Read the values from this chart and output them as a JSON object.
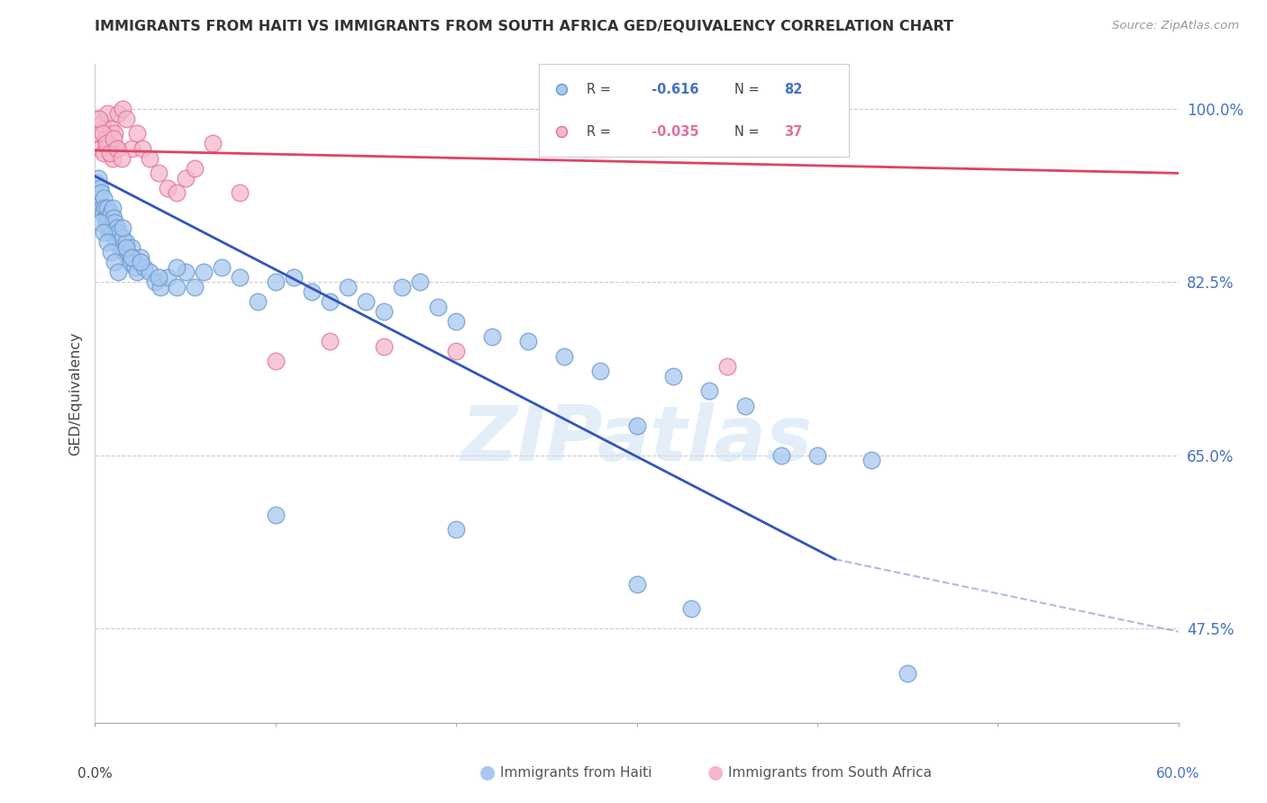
{
  "title": "IMMIGRANTS FROM HAITI VS IMMIGRANTS FROM SOUTH AFRICA GED/EQUIVALENCY CORRELATION CHART",
  "source": "Source: ZipAtlas.com",
  "ylabel": "GED/Equivalency",
  "right_yticks": [
    47.5,
    65.0,
    82.5,
    100.0
  ],
  "right_ytick_labels": [
    "47.5%",
    "65.0%",
    "82.5%",
    "100.0%"
  ],
  "haiti_color": "#a8c8f0",
  "haiti_edge_color": "#6699cc",
  "sa_color": "#f5b8c8",
  "sa_edge_color": "#e070a0",
  "haiti_line_color": "#3355bb",
  "sa_line_color": "#dd4466",
  "watermark": "ZIPatlas",
  "haiti_scatter_x": [
    0.1,
    0.15,
    0.2,
    0.25,
    0.3,
    0.35,
    0.4,
    0.45,
    0.5,
    0.55,
    0.6,
    0.65,
    0.7,
    0.75,
    0.8,
    0.85,
    0.9,
    0.95,
    1.0,
    1.05,
    1.1,
    1.15,
    1.2,
    1.25,
    1.3,
    1.4,
    1.5,
    1.6,
    1.7,
    1.8,
    1.9,
    2.0,
    2.1,
    2.2,
    2.3,
    2.5,
    2.7,
    3.0,
    3.3,
    3.6,
    4.0,
    4.5,
    5.0,
    5.5,
    6.0,
    7.0,
    8.0,
    9.0,
    10.0,
    11.0,
    12.0,
    13.0,
    14.0,
    15.0,
    16.0,
    17.0,
    18.0,
    19.0,
    20.0,
    22.0,
    24.0,
    26.0,
    28.0,
    30.0,
    32.0,
    34.0,
    36.0,
    38.0,
    40.0,
    43.0,
    0.3,
    0.5,
    0.7,
    0.9,
    1.1,
    1.3,
    1.5,
    1.7,
    2.0,
    2.5,
    3.5,
    4.5
  ],
  "haiti_scatter_y": [
    92.5,
    91.0,
    93.0,
    90.5,
    92.0,
    91.5,
    90.0,
    89.5,
    91.0,
    90.0,
    89.0,
    88.5,
    90.0,
    89.0,
    87.5,
    88.0,
    89.5,
    88.0,
    90.0,
    89.0,
    88.5,
    87.0,
    86.5,
    88.0,
    87.5,
    86.0,
    87.0,
    85.5,
    86.5,
    85.0,
    84.5,
    86.0,
    85.0,
    84.0,
    83.5,
    85.0,
    84.0,
    83.5,
    82.5,
    82.0,
    83.0,
    82.0,
    83.5,
    82.0,
    83.5,
    84.0,
    83.0,
    80.5,
    82.5,
    83.0,
    81.5,
    80.5,
    82.0,
    80.5,
    79.5,
    82.0,
    82.5,
    80.0,
    78.5,
    77.0,
    76.5,
    75.0,
    73.5,
    68.0,
    73.0,
    71.5,
    70.0,
    65.0,
    65.0,
    64.5,
    88.5,
    87.5,
    86.5,
    85.5,
    84.5,
    83.5,
    88.0,
    86.0,
    85.0,
    84.5,
    83.0,
    84.0
  ],
  "haiti_outlier_x": [
    10.0,
    20.0,
    30.0,
    33.0,
    45.0
  ],
  "haiti_outlier_y": [
    59.0,
    57.5,
    52.0,
    49.5,
    43.0
  ],
  "sa_scatter_x": [
    0.1,
    0.2,
    0.3,
    0.4,
    0.5,
    0.6,
    0.7,
    0.8,
    0.9,
    1.0,
    1.1,
    1.2,
    1.3,
    1.5,
    1.7,
    2.0,
    2.3,
    2.6,
    3.0,
    3.5,
    4.0,
    4.5,
    5.0,
    5.5,
    6.5,
    8.0,
    10.0,
    13.0,
    16.0,
    20.0,
    0.25,
    0.45,
    0.65,
    0.85,
    1.05,
    1.25,
    1.45
  ],
  "sa_scatter_y": [
    97.5,
    99.0,
    96.0,
    98.5,
    95.5,
    97.0,
    99.5,
    96.5,
    98.0,
    95.0,
    97.5,
    96.0,
    99.5,
    100.0,
    99.0,
    96.0,
    97.5,
    96.0,
    95.0,
    93.5,
    92.0,
    91.5,
    93.0,
    94.0,
    96.5,
    91.5,
    74.5,
    76.5,
    76.0,
    75.5,
    99.0,
    97.5,
    96.5,
    95.5,
    97.0,
    96.0,
    95.0
  ],
  "sa_far_x": [
    35.0
  ],
  "sa_far_y": [
    74.0
  ],
  "xmin": 0.0,
  "xmax": 60.0,
  "ymin": 38.0,
  "ymax": 104.5,
  "blue_line_x1": 0.0,
  "blue_line_y1": 93.2,
  "blue_line_x2": 41.0,
  "blue_line_y2": 54.5,
  "blue_dash_x1": 41.0,
  "blue_dash_y1": 54.5,
  "blue_dash_x2": 60.0,
  "blue_dash_y2": 47.2,
  "pink_line_x1": 0.0,
  "pink_line_y1": 95.8,
  "pink_line_x2": 60.0,
  "pink_line_y2": 93.5,
  "legend_R1": " -0.616",
  "legend_N1": "82",
  "legend_R2": " -0.035",
  "legend_N2": "37",
  "axis_color": "#4472c4",
  "tick_color": "#cccccc"
}
